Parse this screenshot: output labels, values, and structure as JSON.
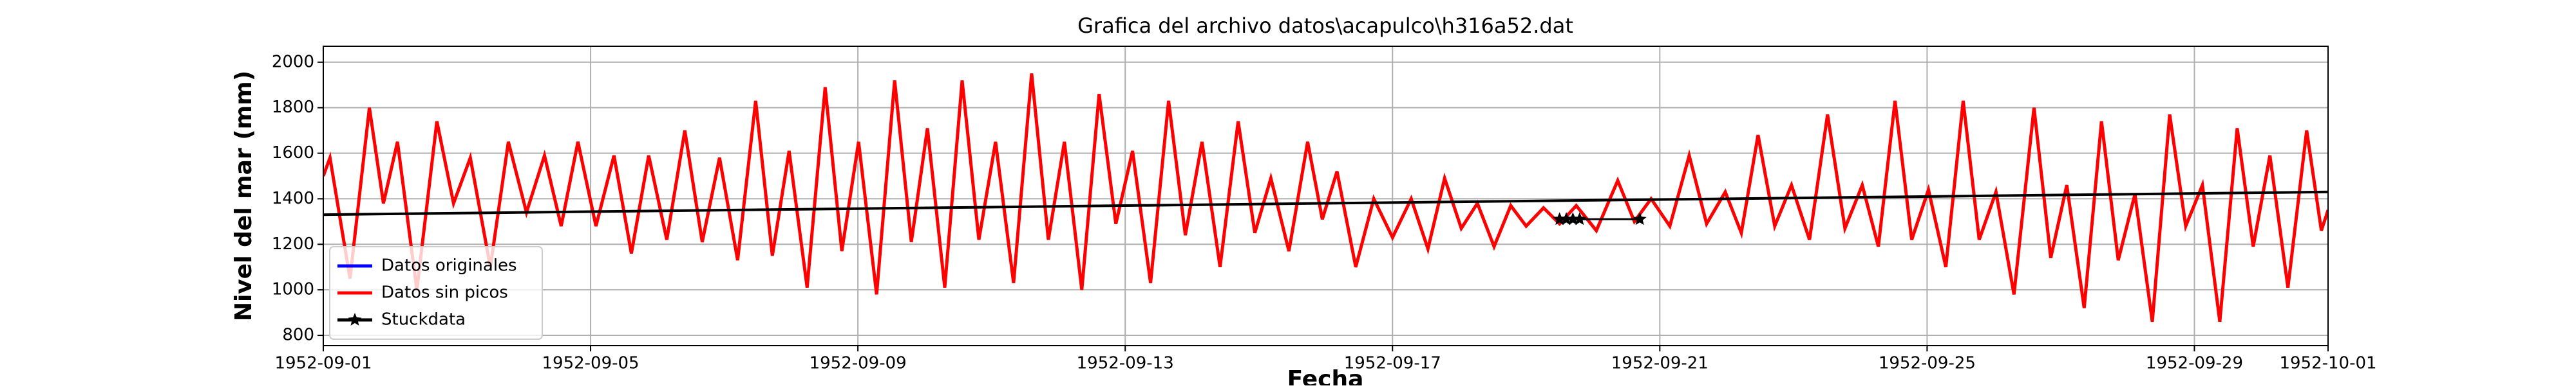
{
  "chart_data": {
    "type": "line",
    "title": "Grafica del archivo datos\\acapulco\\h316a52.dat",
    "xlabel": "Fecha",
    "ylabel": "Nivel del mar (mm)",
    "xlim": [
      0,
      30
    ],
    "ylim": [
      755,
      2070
    ],
    "xticks": [
      {
        "value": 0,
        "label": "1952-09-01"
      },
      {
        "value": 4,
        "label": "1952-09-05"
      },
      {
        "value": 8,
        "label": "1952-09-09"
      },
      {
        "value": 12,
        "label": "1952-09-13"
      },
      {
        "value": 16,
        "label": "1952-09-17"
      },
      {
        "value": 20,
        "label": "1952-09-21"
      },
      {
        "value": 24,
        "label": "1952-09-25"
      },
      {
        "value": 28,
        "label": "1952-09-29"
      },
      {
        "value": 30,
        "label": "1952-10-01"
      }
    ],
    "yticks": [
      800,
      1000,
      1200,
      1400,
      1600,
      1800,
      2000
    ],
    "grid": true,
    "legend": "lower left",
    "x": [
      0,
      0.1,
      0.4,
      0.69,
      0.9,
      1.11,
      1.4,
      1.7,
      1.95,
      2.2,
      2.5,
      2.77,
      3.04,
      3.31,
      3.56,
      3.81,
      4.08,
      4.35,
      4.61,
      4.87,
      5.14,
      5.41,
      5.67,
      5.93,
      6.2,
      6.47,
      6.72,
      6.97,
      7.24,
      7.51,
      7.76,
      8.01,
      8.28,
      8.55,
      8.8,
      9.04,
      9.3,
      9.56,
      9.81,
      10.06,
      10.33,
      10.6,
      10.85,
      11.09,
      11.35,
      11.61,
      11.86,
      12.11,
      12.38,
      12.65,
      12.9,
      13.15,
      13.42,
      13.69,
      13.94,
      14.18,
      14.45,
      14.73,
      14.95,
      15.17,
      15.45,
      15.72,
      16.0,
      16.28,
      16.53,
      16.78,
      17.03,
      17.27,
      17.52,
      17.77,
      18.0,
      18.26,
      18.5,
      18.75,
      19.05,
      19.37,
      19.62,
      19.87,
      20.15,
      20.44,
      20.7,
      20.98,
      21.22,
      21.47,
      21.72,
      21.97,
      22.24,
      22.51,
      22.77,
      23.03,
      23.27,
      23.52,
      23.77,
      24.02,
      24.28,
      24.54,
      24.78,
      25.03,
      25.3,
      25.6,
      25.85,
      26.09,
      26.35,
      26.61,
      26.86,
      27.11,
      27.37,
      27.63,
      27.87,
      28.12,
      28.38,
      28.64,
      28.88,
      29.13,
      29.4,
      29.68,
      29.9,
      30
    ],
    "series": [
      {
        "name": "Datos originales",
        "color": "#0000ff",
        "values": [
          1500,
          1580,
          1050,
          1800,
          1380,
          1650,
          1000,
          1740,
          1380,
          1580,
          1100,
          1650,
          1340,
          1590,
          1280,
          1650,
          1280,
          1590,
          1160,
          1590,
          1220,
          1700,
          1210,
          1580,
          1130,
          1830,
          1150,
          1610,
          1010,
          1890,
          1170,
          1650,
          980,
          1920,
          1210,
          1710,
          1010,
          1920,
          1220,
          1650,
          1030,
          1950,
          1220,
          1650,
          1000,
          1860,
          1290,
          1610,
          1030,
          1830,
          1240,
          1650,
          1100,
          1740,
          1250,
          1490,
          1170,
          1650,
          1310,
          1520,
          1100,
          1400,
          1230,
          1400,
          1180,
          1490,
          1270,
          1380,
          1190,
          1370,
          1280,
          1360,
          1290,
          1370,
          1260,
          1480,
          1300,
          1400,
          1280,
          1590,
          1290,
          1430,
          1250,
          1680,
          1280,
          1460,
          1220,
          1770,
          1270,
          1460,
          1190,
          1830,
          1220,
          1440,
          1100,
          1830,
          1220,
          1430,
          980,
          1800,
          1140,
          1460,
          920,
          1740,
          1130,
          1420,
          860,
          1770,
          1280,
          1460,
          860,
          1710,
          1190,
          1590,
          1010,
          1700,
          1260,
          1350
        ]
      },
      {
        "name": "Datos sin picos",
        "color": "#ff0000",
        "values": [
          1500,
          1580,
          1050,
          1800,
          1380,
          1650,
          1000,
          1740,
          1380,
          1580,
          1100,
          1650,
          1340,
          1590,
          1280,
          1650,
          1280,
          1590,
          1160,
          1590,
          1220,
          1700,
          1210,
          1580,
          1130,
          1830,
          1150,
          1610,
          1010,
          1890,
          1170,
          1650,
          980,
          1920,
          1210,
          1710,
          1010,
          1920,
          1220,
          1650,
          1030,
          1950,
          1220,
          1650,
          1000,
          1860,
          1290,
          1610,
          1030,
          1830,
          1240,
          1650,
          1100,
          1740,
          1250,
          1490,
          1170,
          1650,
          1310,
          1520,
          1100,
          1400,
          1230,
          1400,
          1180,
          1490,
          1270,
          1380,
          1190,
          1370,
          1280,
          1360,
          1290,
          1370,
          1260,
          1480,
          1300,
          1400,
          1280,
          1590,
          1290,
          1430,
          1250,
          1680,
          1280,
          1460,
          1220,
          1770,
          1270,
          1460,
          1190,
          1830,
          1220,
          1440,
          1100,
          1830,
          1220,
          1430,
          980,
          1800,
          1140,
          1460,
          920,
          1740,
          1130,
          1420,
          860,
          1770,
          1280,
          1460,
          860,
          1710,
          1190,
          1590,
          1010,
          1700,
          1260,
          1350
        ]
      },
      {
        "name": "Stuckdata",
        "color": "#000000",
        "marker": "star",
        "x": [
          18.5,
          18.6,
          18.7,
          18.8,
          19.7
        ],
        "values": [
          1310,
          1310,
          1310,
          1310,
          1310
        ]
      },
      {
        "color": "#000000",
        "x": [
          0,
          30
        ],
        "values": [
          1330,
          1430
        ]
      }
    ]
  }
}
